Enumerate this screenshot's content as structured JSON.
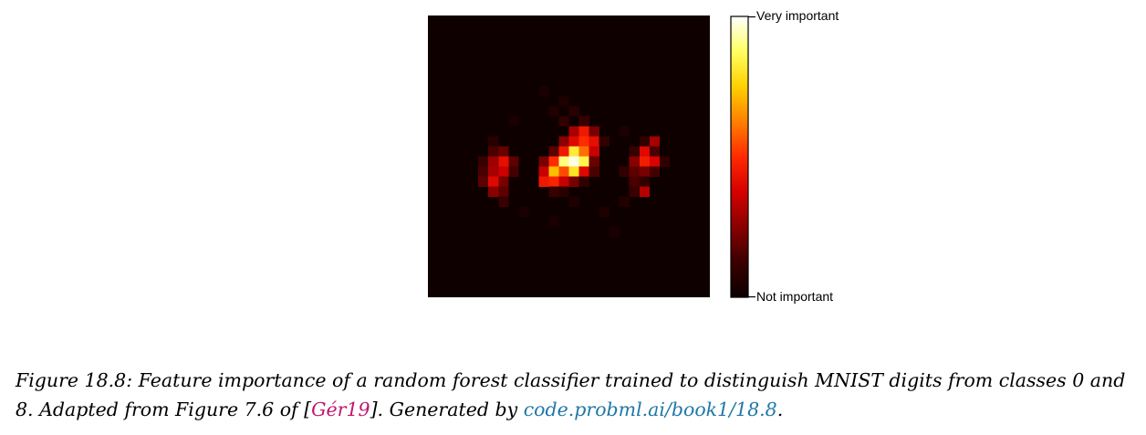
{
  "figure": {
    "colorbar": {
      "top_label": "Very important",
      "bottom_label": "Not important",
      "colormap": "hot",
      "stops": [
        "#0b0000",
        "#3a0000",
        "#8a0000",
        "#d60000",
        "#ff2a00",
        "#ff7f00",
        "#ffd000",
        "#ffff60",
        "#ffffff"
      ]
    },
    "caption": {
      "prefix": "Figure 18.8: Feature importance of a random forest classifier trained to distinguish MNIST digits from classes 0 and 8.  Adapted from Figure 7.6 of [",
      "citation": "Gér19",
      "middle": "].  Generated by ",
      "link": "code.probml.ai/book1/18.8",
      "suffix": "."
    }
  },
  "chart_data": {
    "type": "heatmap",
    "title": "",
    "xlabel": "",
    "ylabel": "",
    "grid": false,
    "colorbar_labels": [
      "Very important",
      "Not important"
    ],
    "zlim": [
      0,
      1
    ],
    "grid_size": [
      28,
      28
    ],
    "background_value": 0.01,
    "cells": [
      {
        "r": 7,
        "c": 11,
        "v": 0.04
      },
      {
        "r": 8,
        "c": 13,
        "v": 0.05
      },
      {
        "r": 9,
        "c": 12,
        "v": 0.06
      },
      {
        "r": 9,
        "c": 14,
        "v": 0.08
      },
      {
        "r": 10,
        "c": 13,
        "v": 0.1
      },
      {
        "r": 10,
        "c": 15,
        "v": 0.12
      },
      {
        "r": 11,
        "c": 14,
        "v": 0.3
      },
      {
        "r": 11,
        "c": 15,
        "v": 0.45
      },
      {
        "r": 11,
        "c": 16,
        "v": 0.22
      },
      {
        "r": 12,
        "c": 13,
        "v": 0.25
      },
      {
        "r": 12,
        "c": 14,
        "v": 0.4
      },
      {
        "r": 12,
        "c": 15,
        "v": 0.5
      },
      {
        "r": 12,
        "c": 16,
        "v": 0.42
      },
      {
        "r": 12,
        "c": 17,
        "v": 0.1
      },
      {
        "r": 13,
        "c": 12,
        "v": 0.18
      },
      {
        "r": 13,
        "c": 13,
        "v": 0.45
      },
      {
        "r": 13,
        "c": 14,
        "v": 0.82
      },
      {
        "r": 13,
        "c": 15,
        "v": 0.6
      },
      {
        "r": 13,
        "c": 16,
        "v": 0.35
      },
      {
        "r": 14,
        "c": 11,
        "v": 0.22
      },
      {
        "r": 14,
        "c": 12,
        "v": 0.5
      },
      {
        "r": 14,
        "c": 13,
        "v": 0.9
      },
      {
        "r": 14,
        "c": 14,
        "v": 0.98
      },
      {
        "r": 14,
        "c": 15,
        "v": 0.85
      },
      {
        "r": 14,
        "c": 16,
        "v": 0.2
      },
      {
        "r": 15,
        "c": 11,
        "v": 0.35
      },
      {
        "r": 15,
        "c": 12,
        "v": 0.72
      },
      {
        "r": 15,
        "c": 13,
        "v": 0.55
      },
      {
        "r": 15,
        "c": 14,
        "v": 0.8
      },
      {
        "r": 15,
        "c": 15,
        "v": 0.4
      },
      {
        "r": 15,
        "c": 16,
        "v": 0.15
      },
      {
        "r": 16,
        "c": 11,
        "v": 0.45
      },
      {
        "r": 16,
        "c": 12,
        "v": 0.48
      },
      {
        "r": 16,
        "c": 13,
        "v": 0.35
      },
      {
        "r": 16,
        "c": 14,
        "v": 0.22
      },
      {
        "r": 16,
        "c": 15,
        "v": 0.1
      },
      {
        "r": 17,
        "c": 12,
        "v": 0.12
      },
      {
        "r": 17,
        "c": 13,
        "v": 0.08
      },
      {
        "r": 12,
        "c": 6,
        "v": 0.08
      },
      {
        "r": 13,
        "c": 6,
        "v": 0.15
      },
      {
        "r": 13,
        "c": 7,
        "v": 0.2
      },
      {
        "r": 14,
        "c": 5,
        "v": 0.12
      },
      {
        "r": 14,
        "c": 6,
        "v": 0.28
      },
      {
        "r": 14,
        "c": 7,
        "v": 0.42
      },
      {
        "r": 14,
        "c": 8,
        "v": 0.18
      },
      {
        "r": 15,
        "c": 5,
        "v": 0.15
      },
      {
        "r": 15,
        "c": 6,
        "v": 0.3
      },
      {
        "r": 15,
        "c": 7,
        "v": 0.36
      },
      {
        "r": 15,
        "c": 8,
        "v": 0.14
      },
      {
        "r": 16,
        "c": 5,
        "v": 0.18
      },
      {
        "r": 16,
        "c": 6,
        "v": 0.4
      },
      {
        "r": 16,
        "c": 7,
        "v": 0.22
      },
      {
        "r": 17,
        "c": 6,
        "v": 0.25
      },
      {
        "r": 17,
        "c": 7,
        "v": 0.18
      },
      {
        "r": 18,
        "c": 7,
        "v": 0.12
      },
      {
        "r": 12,
        "c": 22,
        "v": 0.3
      },
      {
        "r": 12,
        "c": 21,
        "v": 0.1
      },
      {
        "r": 13,
        "c": 20,
        "v": 0.12
      },
      {
        "r": 13,
        "c": 21,
        "v": 0.4
      },
      {
        "r": 13,
        "c": 22,
        "v": 0.15
      },
      {
        "r": 14,
        "c": 20,
        "v": 0.25
      },
      {
        "r": 14,
        "c": 21,
        "v": 0.46
      },
      {
        "r": 14,
        "c": 22,
        "v": 0.38
      },
      {
        "r": 14,
        "c": 23,
        "v": 0.1
      },
      {
        "r": 15,
        "c": 19,
        "v": 0.1
      },
      {
        "r": 15,
        "c": 20,
        "v": 0.18
      },
      {
        "r": 15,
        "c": 21,
        "v": 0.22
      },
      {
        "r": 15,
        "c": 22,
        "v": 0.14
      },
      {
        "r": 16,
        "c": 20,
        "v": 0.15
      },
      {
        "r": 16,
        "c": 21,
        "v": 0.1
      },
      {
        "r": 17,
        "c": 20,
        "v": 0.12
      },
      {
        "r": 17,
        "c": 21,
        "v": 0.32
      },
      {
        "r": 18,
        "c": 14,
        "v": 0.05
      },
      {
        "r": 19,
        "c": 9,
        "v": 0.04
      },
      {
        "r": 19,
        "c": 17,
        "v": 0.05
      },
      {
        "r": 20,
        "c": 12,
        "v": 0.04
      },
      {
        "r": 21,
        "c": 18,
        "v": 0.04
      },
      {
        "r": 10,
        "c": 8,
        "v": 0.04
      },
      {
        "r": 11,
        "c": 19,
        "v": 0.05
      },
      {
        "r": 18,
        "c": 19,
        "v": 0.06
      }
    ]
  }
}
